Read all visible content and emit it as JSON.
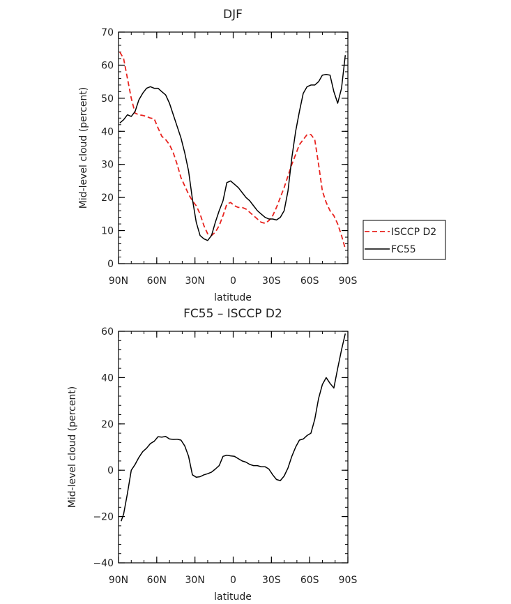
{
  "chart_data": [
    {
      "type": "line",
      "title": "DJF",
      "xlabel": "latitude",
      "ylabel": "Mid-level cloud (percent)",
      "xlim": [
        90,
        -90
      ],
      "ylim": [
        0,
        70
      ],
      "x_tick_values": [
        90,
        60,
        30,
        0,
        -30,
        -60,
        -90
      ],
      "x_tick_labels": [
        "90N",
        "60N",
        "30N",
        "0",
        "30S",
        "60S",
        "90S"
      ],
      "y_tick_values": [
        0,
        10,
        20,
        30,
        40,
        50,
        60,
        70
      ],
      "y_tick_labels": [
        "0",
        "10",
        "20",
        "30",
        "40",
        "50",
        "60",
        "70"
      ],
      "legend": {
        "placement": "right-bottom"
      },
      "series": [
        {
          "name": "ISCCP D2",
          "color": "#e8231f",
          "style": "dashed",
          "x": [
            89,
            86,
            83,
            80,
            77,
            74,
            71,
            68,
            65,
            62,
            59,
            56,
            53,
            50,
            47,
            44,
            41,
            38,
            35,
            32,
            29,
            26,
            23,
            20,
            17,
            14,
            11,
            8,
            5,
            2,
            -1,
            -4,
            -7,
            -10,
            -13,
            -16,
            -19,
            -22,
            -25,
            -28,
            -31,
            -34,
            -37,
            -40,
            -43,
            -46,
            -49,
            -52,
            -55,
            -58,
            -61,
            -64,
            -67,
            -70,
            -73,
            -76,
            -79,
            -82,
            -85,
            -88
          ],
          "y": [
            64,
            62,
            56,
            50,
            45.5,
            45,
            44.8,
            44.5,
            44,
            43.8,
            41,
            38.5,
            37.5,
            36,
            33.5,
            30,
            26,
            23.5,
            21,
            19,
            17.5,
            15,
            11.5,
            9,
            8.5,
            9.5,
            11.5,
            14.5,
            18,
            18.5,
            17.5,
            17,
            17,
            16.5,
            15.5,
            14.5,
            13.5,
            12.5,
            12.2,
            13,
            14.5,
            17,
            20,
            23,
            26.5,
            30,
            33,
            36,
            37.5,
            39,
            39,
            37.5,
            30,
            22,
            18.5,
            16,
            14.5,
            12,
            8.5,
            4.5
          ]
        },
        {
          "name": "FC55",
          "color": "#000000",
          "style": "solid",
          "x": [
            89,
            86,
            83,
            80,
            77,
            74,
            71,
            68,
            65,
            62,
            59,
            56,
            53,
            50,
            47,
            44,
            41,
            38,
            35,
            32,
            29,
            26,
            23,
            20,
            17,
            14,
            11,
            8,
            5,
            2,
            -1,
            -4,
            -7,
            -10,
            -13,
            -16,
            -19,
            -22,
            -25,
            -28,
            -31,
            -34,
            -37,
            -40,
            -43,
            -46,
            -49,
            -52,
            -55,
            -58,
            -61,
            -64,
            -67,
            -70,
            -73,
            -76,
            -79,
            -82,
            -85,
            -88
          ],
          "y": [
            42.5,
            43.5,
            45,
            44.5,
            46,
            49.5,
            51.5,
            53,
            53.5,
            53,
            53,
            52,
            51,
            48.5,
            45,
            41.5,
            38,
            33.5,
            28,
            19.5,
            12.5,
            8.5,
            7.5,
            7,
            8.5,
            12.5,
            16,
            19,
            24.5,
            25,
            24,
            23,
            21.5,
            20,
            19,
            17.5,
            16,
            15,
            14,
            13.5,
            13.5,
            13.2,
            14,
            16,
            22,
            32,
            40,
            46,
            51.5,
            53.5,
            54,
            54,
            55,
            57,
            57.2,
            57,
            52,
            48.5,
            53,
            63
          ]
        }
      ]
    },
    {
      "type": "line",
      "title": "FC55 – ISCCP D2",
      "xlabel": "latitude",
      "ylabel": "Mid-level cloud (percent)",
      "xlim": [
        90,
        -90
      ],
      "ylim": [
        -40,
        60
      ],
      "x_tick_values": [
        90,
        60,
        30,
        0,
        -30,
        -60,
        -90
      ],
      "x_tick_labels": [
        "90N",
        "60N",
        "30N",
        "0",
        "30S",
        "60S",
        "90S"
      ],
      "y_tick_values": [
        -40,
        -20,
        0,
        20,
        40,
        60
      ],
      "y_tick_labels": [
        "−40",
        "−20",
        "0",
        "20",
        "40",
        "60"
      ],
      "series": [
        {
          "color": "#000000",
          "style": "solid",
          "x": [
            88,
            86,
            83,
            80,
            77,
            74,
            71,
            68,
            65,
            62,
            59,
            56,
            53,
            50,
            47,
            44,
            41,
            38,
            35,
            32,
            29,
            26,
            23,
            20,
            17,
            14,
            11,
            8,
            5,
            2,
            -1,
            -4,
            -7,
            -10,
            -13,
            -16,
            -19,
            -22,
            -25,
            -28,
            -31,
            -34,
            -37,
            -40,
            -43,
            -46,
            -49,
            -52,
            -55,
            -58,
            -61,
            -64,
            -67,
            -70,
            -73,
            -76,
            -79,
            -82,
            -85,
            -88
          ],
          "y": [
            -22,
            -19,
            -10,
            0,
            2.5,
            5.5,
            8,
            9.5,
            11.5,
            12.5,
            14.5,
            14.3,
            14.6,
            13.5,
            13.3,
            13.4,
            13,
            10.5,
            6,
            -2,
            -3,
            -2.8,
            -2,
            -1.5,
            -0.8,
            0.5,
            2,
            6,
            6.5,
            6.2,
            6,
            5,
            4,
            3.5,
            2.5,
            2,
            2,
            1.5,
            1.5,
            0.5,
            -2,
            -4,
            -4.5,
            -2.5,
            1,
            6,
            10,
            13,
            13.5,
            15,
            16,
            22,
            31,
            37,
            40,
            37.5,
            35.5,
            44,
            52,
            59
          ]
        }
      ]
    }
  ]
}
